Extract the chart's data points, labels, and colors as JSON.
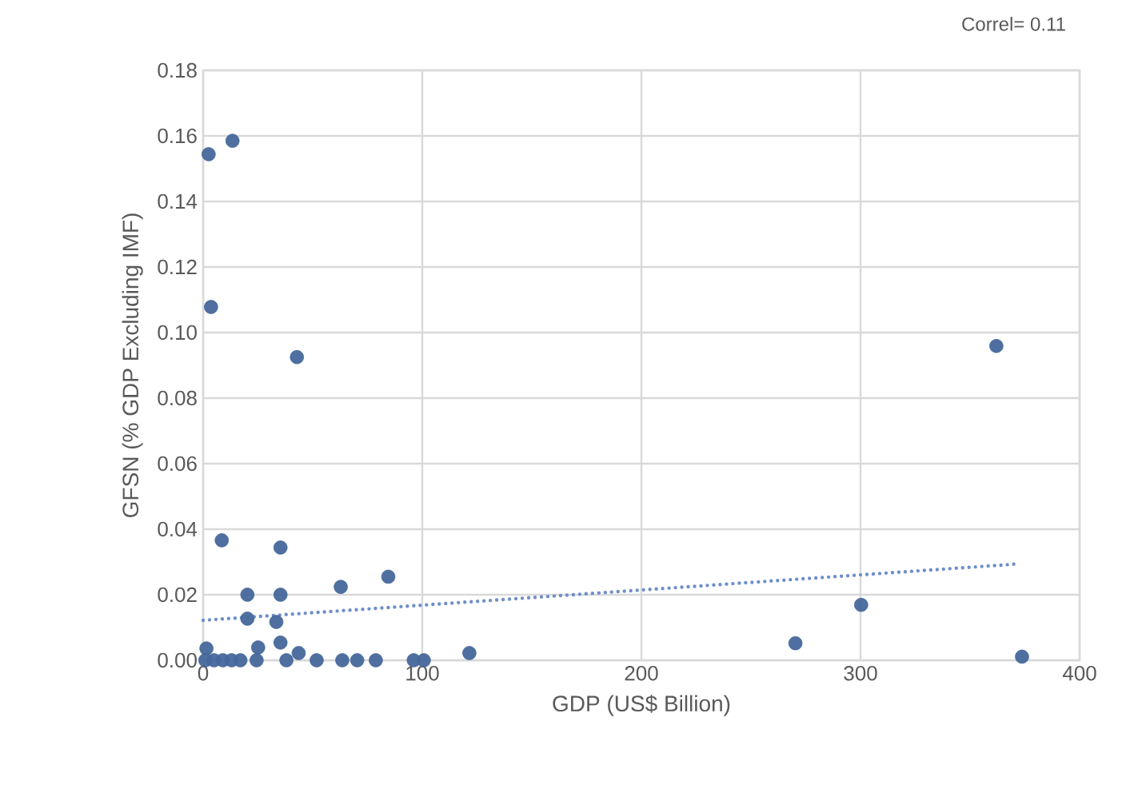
{
  "chart_data": {
    "type": "scatter",
    "xlabel": "GDP (US$ Billion)",
    "ylabel": "GFSN (% GDP Excluding IMF)",
    "annotations": [
      "Correl= 0.11"
    ],
    "xlim": [
      0,
      400
    ],
    "xticks": [
      0,
      100,
      200,
      300,
      400
    ],
    "ylim": [
      0,
      0.18
    ],
    "yticks": [
      {
        "value": 0,
        "label": "0.00"
      },
      {
        "value": 0.02,
        "label": "0.02"
      },
      {
        "value": 0.04,
        "label": "0.04"
      },
      {
        "value": 0.06,
        "label": "0.06"
      },
      {
        "value": 0.08,
        "label": "0.08"
      },
      {
        "value": 0.1,
        "label": "0.10"
      },
      {
        "value": 0.12,
        "label": "0.12"
      },
      {
        "value": 0.14,
        "label": "0.14"
      },
      {
        "value": 0.16,
        "label": "0.16"
      },
      {
        "value": 0.18,
        "label": "0.18"
      }
    ],
    "grid": true,
    "series": [
      {
        "marker": "circle",
        "color": "#44679a",
        "x": [
          1,
          5,
          9,
          13,
          17,
          24.4,
          38,
          51.8,
          63.5,
          70.3,
          78.8,
          96.1,
          100.7,
          1.5,
          25.1,
          35.3,
          43.6,
          121.5,
          33.4,
          20.2,
          20.2,
          35.3,
          62.8,
          84.5,
          35.3,
          8.5,
          42.8,
          3.6,
          2.5,
          13.4,
          362,
          270.3,
          300.3,
          373.7
        ],
        "values": [
          0,
          0,
          0,
          0,
          0,
          0,
          0,
          0,
          0,
          0,
          0,
          0,
          0,
          0.0036,
          0.0039,
          0.0054,
          0.0022,
          0.0022,
          0.0117,
          0.0127,
          0.02,
          0.02,
          0.0224,
          0.0255,
          0.0344,
          0.0366,
          0.0925,
          0.1078,
          0.1544,
          0.1585,
          0.0959,
          0.0052,
          0.0169,
          0.0011
        ]
      },
      {
        "type": "line",
        "color": "#6f8fc7",
        "line_style": "dotted",
        "x": [
          0,
          372
        ],
        "values": [
          0.0122,
          0.0294
        ]
      }
    ]
  }
}
